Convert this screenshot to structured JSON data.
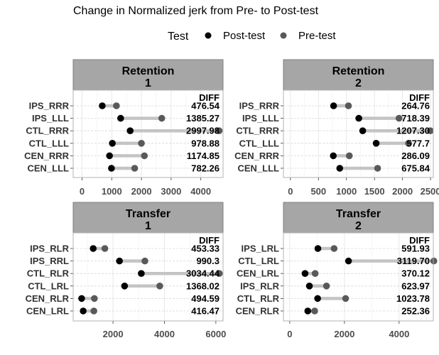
{
  "chart_data": {
    "type": "dumbbell",
    "title": "Change in Normalized jerk from Pre- to Post-test",
    "legend": {
      "title": "Test",
      "position": "top",
      "entries": [
        {
          "name": "Post-test",
          "color": "#000000"
        },
        {
          "name": "Pre-test",
          "color": "#595959"
        }
      ]
    },
    "diff_header": "DIFF",
    "panels": [
      {
        "strip": [
          "Retention",
          "1"
        ],
        "xlim": [
          -300,
          4750
        ],
        "ticks": [
          0,
          1000,
          2000,
          3000,
          4000
        ],
        "rows": [
          {
            "label": "IPS_RRR",
            "post": 680,
            "pre": 1157,
            "diff": "476.54"
          },
          {
            "label": "IPS_LLL",
            "post": 1300,
            "pre": 2685,
            "diff": "1385.27"
          },
          {
            "label": "CTL_RRR",
            "post": 1620,
            "pre": 4618,
            "diff": "2997.98"
          },
          {
            "label": "CTL_LLL",
            "post": 1020,
            "pre": 1999,
            "diff": "978.88"
          },
          {
            "label": "CEN_RRR",
            "post": 925,
            "pre": 2100,
            "diff": "1174.85"
          },
          {
            "label": "CEN_LLL",
            "post": 990,
            "pre": 1772,
            "diff": "782.26"
          }
        ]
      },
      {
        "strip": [
          "Retention",
          "2"
        ],
        "xlim": [
          -125,
          2550
        ],
        "ticks": [
          0,
          500,
          1000,
          1500,
          2000,
          2500
        ],
        "rows": [
          {
            "label": "IPS_RRR",
            "post": 770,
            "pre": 1035,
            "diff": "264.76"
          },
          {
            "label": "IPS_LLL",
            "post": 1220,
            "pre": 1938,
            "diff": "718.39"
          },
          {
            "label": "CTL_RRR",
            "post": 1290,
            "pre": 2497,
            "diff": "1207.30"
          },
          {
            "label": "CTL_LLL",
            "post": 1530,
            "pre": 2108,
            "diff": "577.7"
          },
          {
            "label": "CEN_RRR",
            "post": 765,
            "pre": 1051,
            "diff": "286.09"
          },
          {
            "label": "CEN_LLL",
            "post": 880,
            "pre": 1556,
            "diff": "675.84"
          }
        ]
      },
      {
        "strip": [
          "Transfer",
          "1"
        ],
        "xlim": [
          450,
          6280
        ],
        "ticks": [
          2000,
          4000,
          6000
        ],
        "rows": [
          {
            "label": "IPS_RLR",
            "post": 1230,
            "pre": 1683,
            "diff": "453.33"
          },
          {
            "label": "IPS_RRL",
            "post": 2250,
            "pre": 3240,
            "diff": "990.3"
          },
          {
            "label": "CTL_RLR",
            "post": 3100,
            "pre": 6134,
            "diff": "3034.44"
          },
          {
            "label": "CTL_LRL",
            "post": 2450,
            "pre": 3818,
            "diff": "1368.02"
          },
          {
            "label": "CEN_RLR",
            "post": 780,
            "pre": 1275,
            "diff": "494.59"
          },
          {
            "label": "CEN_LRL",
            "post": 840,
            "pre": 1256,
            "diff": "416.47"
          }
        ]
      },
      {
        "strip": [
          "Transfer",
          "2"
        ],
        "xlim": [
          -230,
          5250
        ],
        "ticks": [
          0,
          2000,
          4000
        ],
        "rows": [
          {
            "label": "IPS_LRL",
            "post": 1030,
            "pre": 1622,
            "diff": "591.93"
          },
          {
            "label": "CTL_LRL",
            "post": 2150,
            "pre": 5270,
            "diff": "3119.70"
          },
          {
            "label": "CEN_LRL",
            "post": 560,
            "pre": 930,
            "diff": "370.12"
          },
          {
            "label": "IPS_RLR",
            "post": 720,
            "pre": 1344,
            "diff": "623.97"
          },
          {
            "label": "CTL_RLR",
            "post": 1020,
            "pre": 2044,
            "diff": "1023.78"
          },
          {
            "label": "CEN_RLR",
            "post": 660,
            "pre": 912,
            "diff": "252.36"
          }
        ]
      }
    ]
  }
}
